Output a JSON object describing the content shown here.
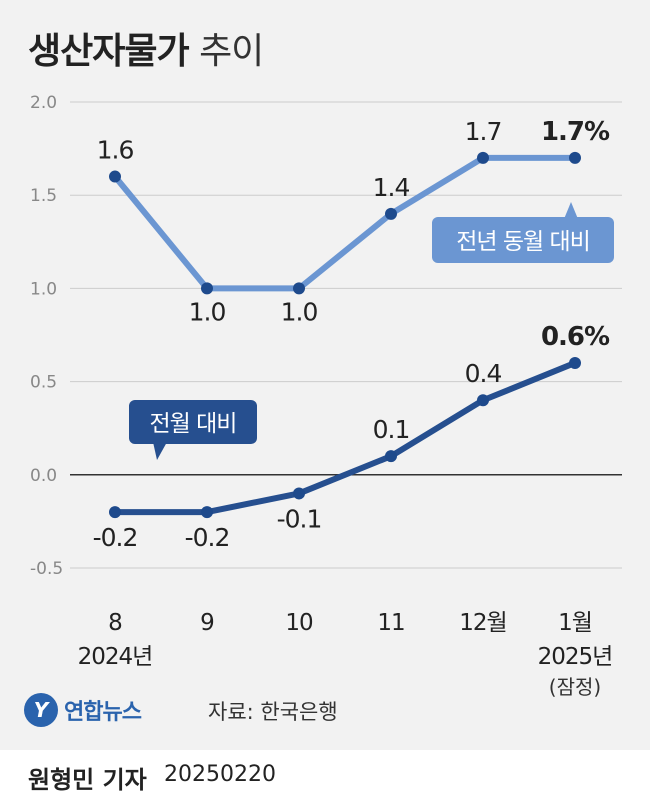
{
  "title": {
    "main": "생산자물가",
    "sub": "추이"
  },
  "source": "자료: 한국은행",
  "logo": {
    "mark": "Y",
    "name": "연합뉴스"
  },
  "footer": {
    "reporter": "원형민 기자",
    "date": "20250220"
  },
  "colors": {
    "yoy": "#6b96d2",
    "mom": "#264f8f",
    "zero_line": "#333333",
    "grid": "#cccccc"
  },
  "chart_data": {
    "type": "line",
    "title": "생산자물가 추이",
    "categories": [
      "8",
      "9",
      "10",
      "11",
      "12월",
      "1월"
    ],
    "category_sublabels": [
      "2024년",
      "",
      "",
      "",
      "",
      "2025년"
    ],
    "category_note": {
      "index": 5,
      "text": "(잠정)"
    },
    "yticks": [
      "2.0",
      "1.5",
      "1.0",
      "0.5",
      "0.0",
      "-0.5"
    ],
    "ylim": [
      -0.5,
      2.0
    ],
    "grid": true,
    "series": [
      {
        "name": "전년 동월 대비",
        "values": [
          1.6,
          1.0,
          1.0,
          1.4,
          1.7,
          1.7
        ],
        "labels": [
          "1.6",
          "1.0",
          "1.0",
          "1.4",
          "1.7",
          "1.7%"
        ]
      },
      {
        "name": "전월 대비",
        "values": [
          -0.2,
          -0.2,
          -0.1,
          0.1,
          0.4,
          0.6
        ],
        "labels": [
          "-0.2",
          "-0.2",
          "-0.1",
          "0.1",
          "0.4",
          "0.6%"
        ]
      }
    ]
  }
}
